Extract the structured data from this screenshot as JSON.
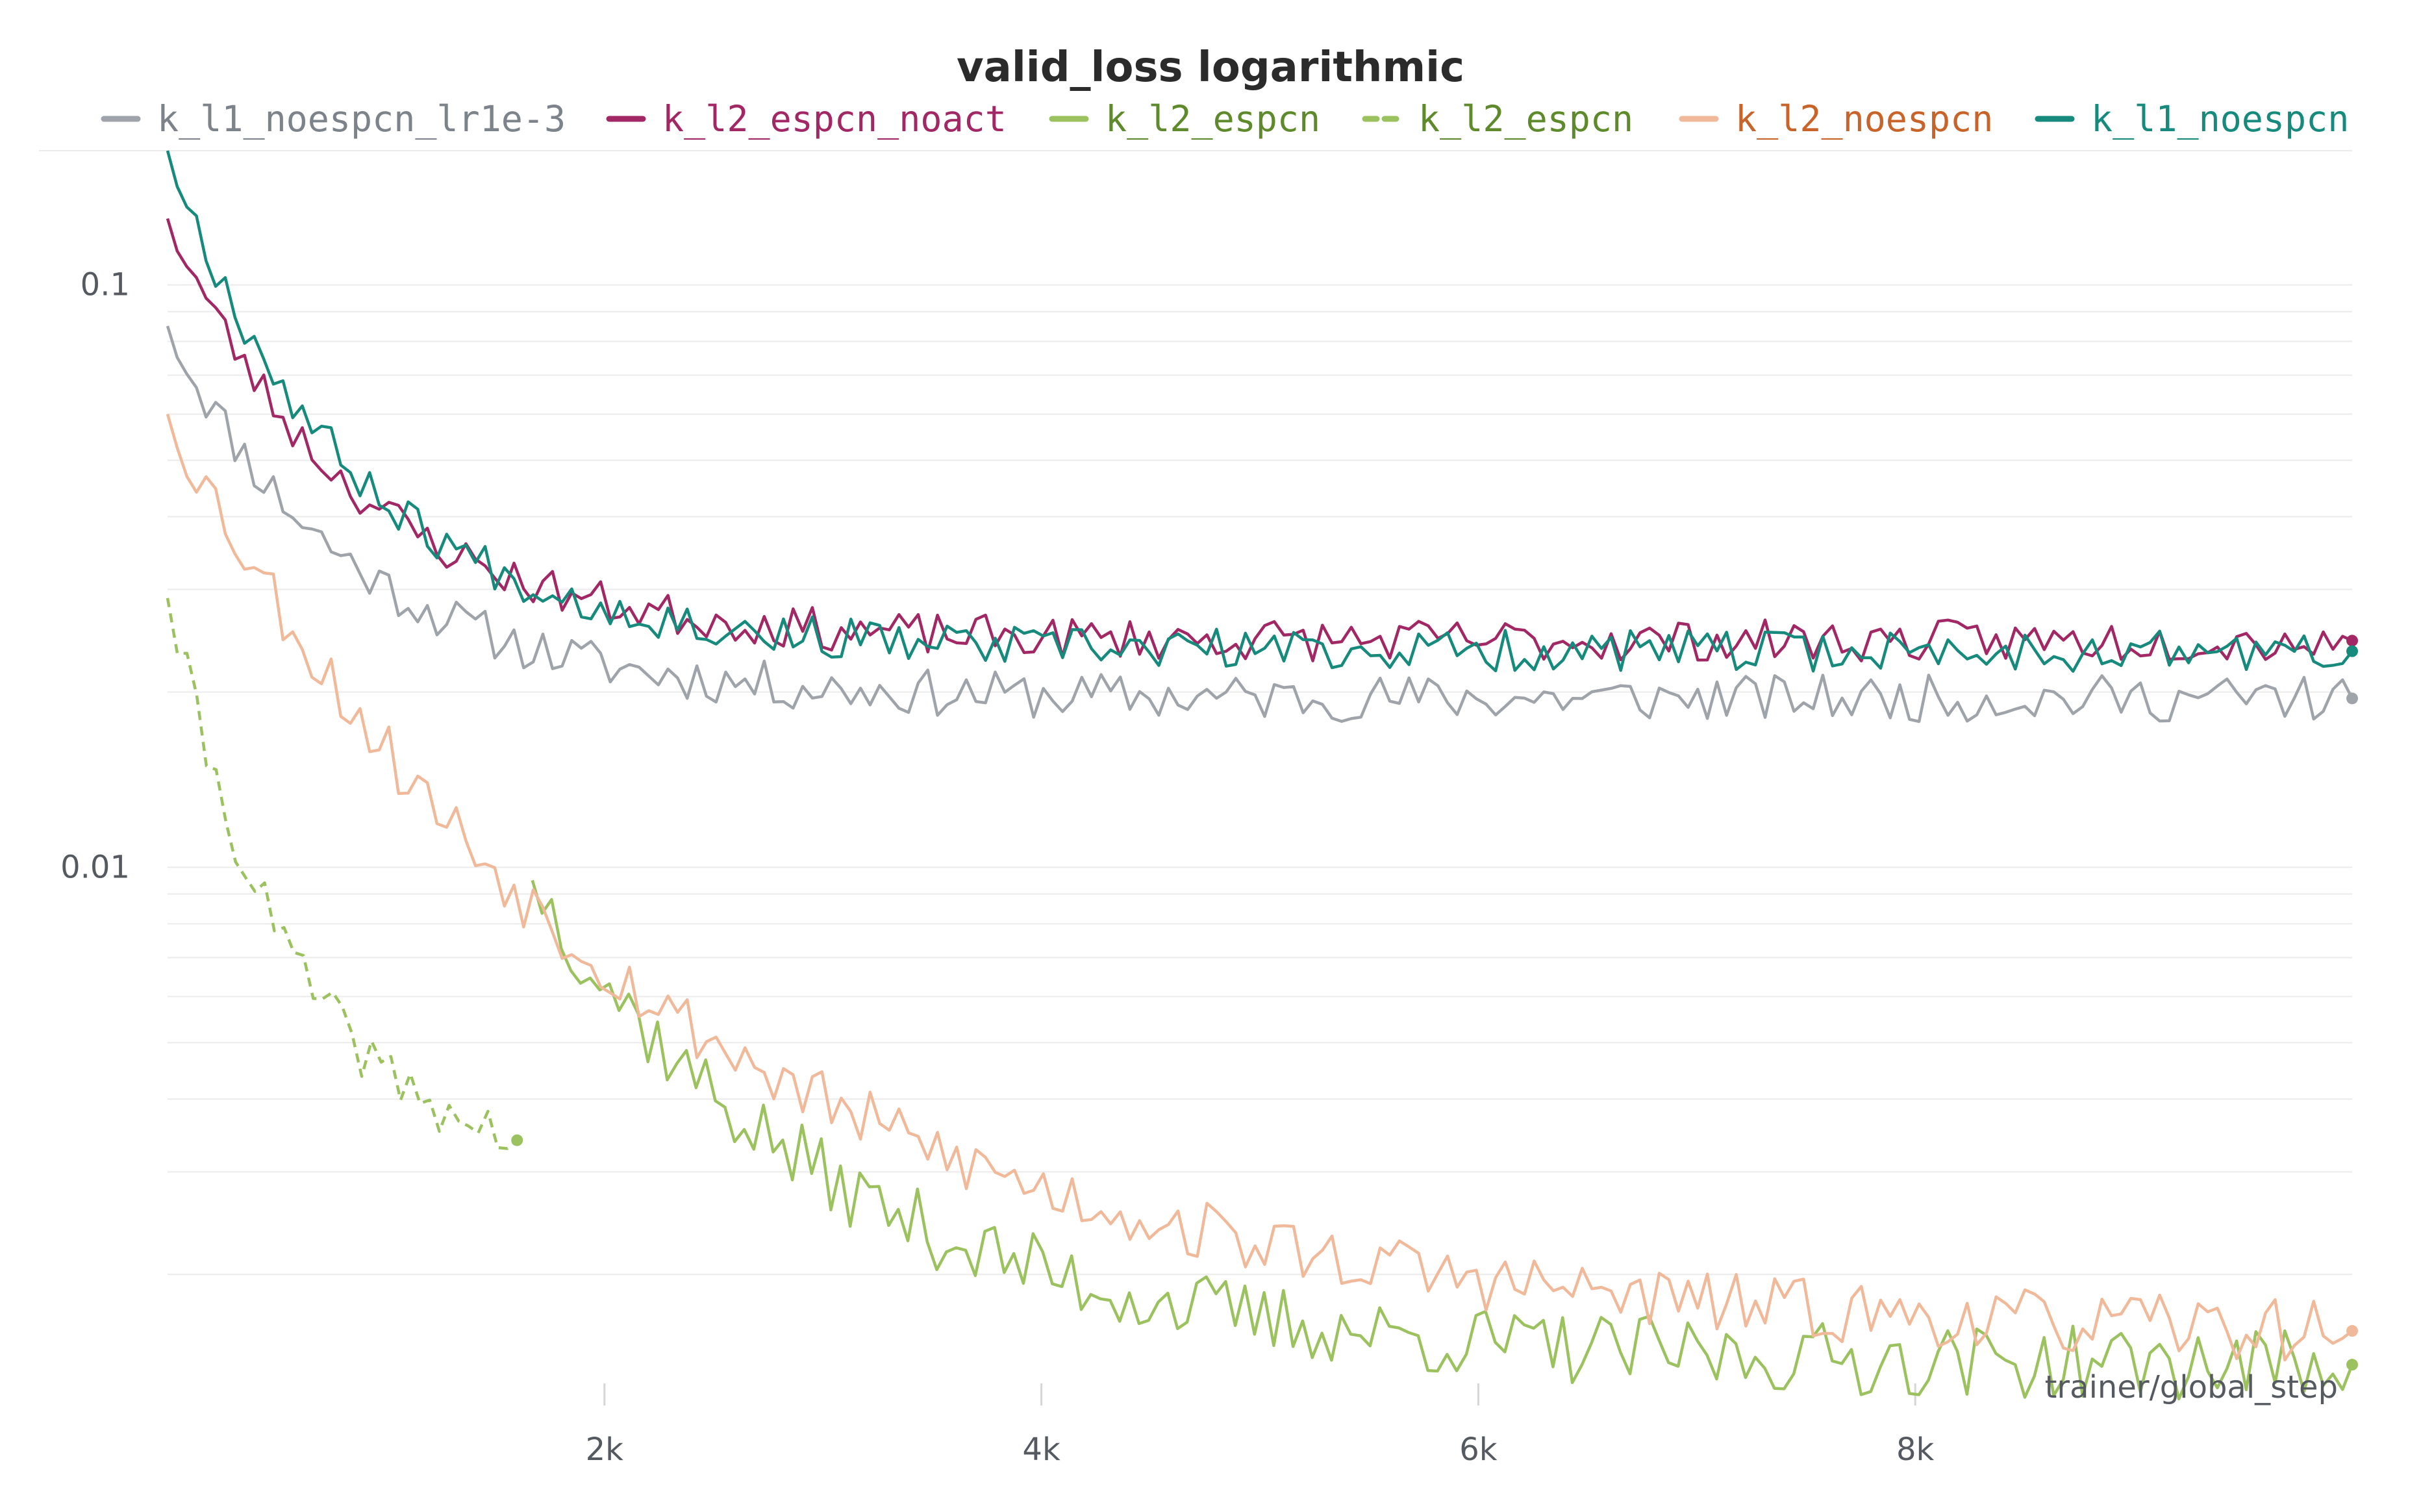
{
  "chart_data": {
    "type": "line",
    "title": "valid_loss logarithmic",
    "xlabel": "trainer/global_step",
    "ylabel": "",
    "yscale": "log",
    "xlim": [
      0,
      10000
    ],
    "ylim": [
      0.0013,
      0.17
    ],
    "x_ticks": [
      2000,
      4000,
      6000,
      8000
    ],
    "x_tick_labels": [
      "2k",
      "4k",
      "6k",
      "8k"
    ],
    "y_ticks": [
      0.1,
      0.01
    ],
    "y_tick_labels": [
      "0.1",
      "0.01"
    ],
    "grid": true,
    "legend_position": "top",
    "series": [
      {
        "name": "k_l1_noespcn_lr1e-3",
        "color": "#9fa4aa",
        "dashed": false,
        "x_range": [
          0,
          10000
        ],
        "start": 0.085,
        "end": 0.0195,
        "decay": 0.0012,
        "noise": 0.045,
        "seed": 11
      },
      {
        "name": "k_l2_espcn_noact",
        "color": "#a12864",
        "dashed": false,
        "x_range": [
          0,
          10000
        ],
        "start": 0.13,
        "end": 0.0245,
        "decay": 0.0012,
        "noise": 0.04,
        "seed": 23
      },
      {
        "name": "k_l2_espcn",
        "color": "#9bc25e",
        "dashed": false,
        "x_range": [
          1670,
          10000
        ],
        "start": 0.0095,
        "end": 0.0014,
        "decay": 0.0007,
        "noise": 0.07,
        "seed": 37
      },
      {
        "name": "k_l2_espcn",
        "color": "#9bc25e",
        "dashed": true,
        "x_range": [
          0,
          1600
        ],
        "start": 0.029,
        "end": 0.0034,
        "decay": 0.0017,
        "noise": 0.05,
        "seed": 41
      },
      {
        "name": "k_l2_noespcn",
        "color": "#f0b99a",
        "dashed": false,
        "x_range": [
          0,
          10000
        ],
        "start": 0.06,
        "end": 0.0016,
        "decay": 0.00045,
        "noise": 0.06,
        "seed": 53
      },
      {
        "name": "k_l1_noespcn",
        "color": "#168a7c",
        "dashed": false,
        "x_range": [
          0,
          10000
        ],
        "start": 0.17,
        "end": 0.0235,
        "decay": 0.0012,
        "noise": 0.04,
        "seed": 67
      }
    ]
  },
  "legend": [
    {
      "label": "k_l1_noespcn_lr1e-3",
      "color": "#9fa4aa",
      "text_color": "#7d838a",
      "dashed": false
    },
    {
      "label": "k_l2_espcn_noact",
      "color": "#a12864",
      "text_color": "#a12864",
      "dashed": false
    },
    {
      "label": "k_l2_espcn",
      "color": "#9bc25e",
      "text_color": "#5e8a2c",
      "dashed": false
    },
    {
      "label": "k_l2_espcn",
      "color": "#9bc25e",
      "text_color": "#5e8a2c",
      "dashed": true
    },
    {
      "label": "k_l2_noespcn",
      "color": "#f0b99a",
      "text_color": "#c8642a",
      "dashed": false
    },
    {
      "label": "k_l1_noespcn",
      "color": "#168a7c",
      "text_color": "#168a7c",
      "dashed": false
    }
  ]
}
